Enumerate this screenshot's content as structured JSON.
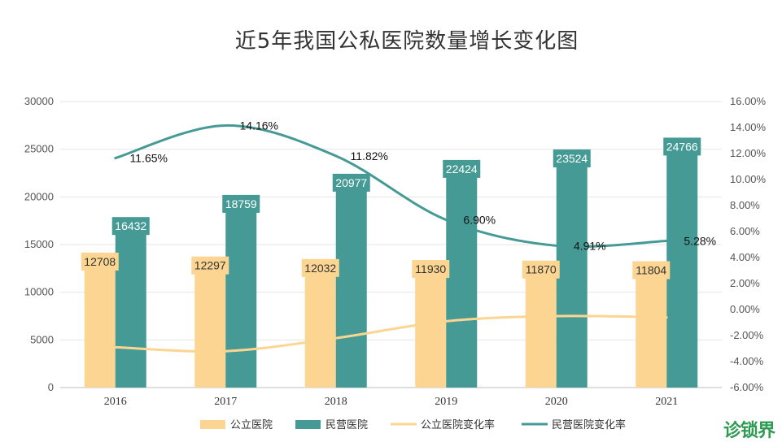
{
  "chart_data": {
    "type": "bar",
    "title": "近5年我国公私医院数量增长变化图",
    "categories": [
      "2016",
      "2017",
      "2018",
      "2019",
      "2020",
      "2021"
    ],
    "series": [
      {
        "name": "公立医院",
        "type": "bar",
        "axis": "left",
        "color": "#fcd592",
        "values": [
          12708,
          12297,
          12032,
          11930,
          11870,
          11804
        ]
      },
      {
        "name": "民营医院",
        "type": "bar",
        "axis": "left",
        "color": "#469a95",
        "values": [
          16432,
          18759,
          20977,
          22424,
          23524,
          24766
        ]
      },
      {
        "name": "公立医院变化率",
        "type": "line",
        "axis": "right",
        "color": "#fcd592",
        "values": [
          -2.9,
          -3.2,
          -2.2,
          -0.9,
          -0.5,
          -0.6
        ]
      },
      {
        "name": "民营医院变化率",
        "type": "line",
        "axis": "right",
        "color": "#469a95",
        "values": [
          11.65,
          14.16,
          11.82,
          6.9,
          4.91,
          5.28
        ],
        "labels": [
          "11.65%",
          "14.16%",
          "11.82%",
          "6.90%",
          "4.91%",
          "5.28%"
        ]
      }
    ],
    "ylim_left": [
      0,
      30000
    ],
    "yticks_left": [
      "0",
      "5000",
      "10000",
      "15000",
      "20000",
      "25000",
      "30000"
    ],
    "ylim_right": [
      -6,
      16
    ],
    "yticks_right": [
      "-6.00%",
      "-4.00%",
      "-2.00%",
      "0.00%",
      "2.00%",
      "4.00%",
      "6.00%",
      "8.00%",
      "10.00%",
      "12.00%",
      "14.00%",
      "16.00%"
    ],
    "grid": true,
    "legend_position": "bottom"
  },
  "watermark": "诊锁界"
}
